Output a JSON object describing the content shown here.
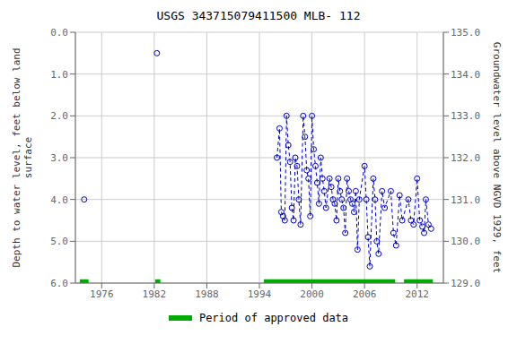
{
  "chart_data": {
    "type": "scatter",
    "title": "USGS 343715079411500 MLB- 112",
    "ylabel": "Depth to water level, feet below land\nsurface",
    "y2label": "Groundwater level above NGVD 1929, feet",
    "xlim": [
      1973,
      2015
    ],
    "xticks": [
      1976,
      1982,
      1988,
      1994,
      2000,
      2006,
      2012
    ],
    "ylim": [
      6.0,
      0.0
    ],
    "yticks": [
      {
        "value": 0.0,
        "label": "0.0"
      },
      {
        "value": 1.0,
        "label": "1.0"
      },
      {
        "value": 2.0,
        "label": "2.0"
      },
      {
        "value": 3.0,
        "label": "3.0"
      },
      {
        "value": 4.0,
        "label": "4.0"
      },
      {
        "value": 5.0,
        "label": "5.0"
      },
      {
        "value": 6.0,
        "label": "6.0"
      }
    ],
    "y2lim": [
      129.0,
      135.0
    ],
    "y2ticks": [
      {
        "value": 129.0,
        "label": "129.0"
      },
      {
        "value": 130.0,
        "label": "130.0"
      },
      {
        "value": 131.0,
        "label": "131.0"
      },
      {
        "value": 132.0,
        "label": "132.0"
      },
      {
        "value": 133.0,
        "label": "133.0"
      },
      {
        "value": 134.0,
        "label": "134.0"
      },
      {
        "value": 135.0,
        "label": "135.0"
      }
    ],
    "grid": true,
    "series": [
      {
        "color": "#0000cc",
        "marker": "circle",
        "line_style": "dashed",
        "x": [
          1974.0
        ],
        "values": [
          4.0
        ]
      },
      {
        "color": "#0000cc",
        "marker": "circle",
        "line_style": "dashed",
        "x": [
          1982.3
        ],
        "values": [
          0.5
        ]
      },
      {
        "color": "#0000cc",
        "marker": "circle",
        "line_style": "dashed",
        "x": [
          1996.0,
          1996.3,
          1996.5,
          1996.7,
          1996.9,
          1997.1,
          1997.3,
          1997.5,
          1997.7,
          1997.9,
          1998.1,
          1998.3,
          1998.5,
          1998.7,
          1999.0,
          1999.2,
          1999.4,
          1999.6,
          1999.8,
          2000.0,
          2000.2,
          2000.4,
          2000.6,
          2000.8,
          2001.0,
          2001.2,
          2001.4,
          2001.6,
          2002.0,
          2002.2,
          2002.4,
          2002.6,
          2002.8,
          2003.0,
          2003.2,
          2003.4,
          2003.6,
          2003.8,
          2004.0,
          2004.2,
          2004.4,
          2004.6,
          2004.8,
          2005.0,
          2005.2,
          2005.4,
          2006.0,
          2006.2,
          2006.4,
          2006.6,
          2007.0,
          2007.2,
          2007.4,
          2007.6,
          2008.0,
          2008.3,
          2009.0,
          2009.3,
          2009.6,
          2010.0,
          2010.3,
          2011.0,
          2011.3,
          2011.6,
          2012.0,
          2012.3,
          2012.6,
          2012.8,
          2013.0,
          2013.3,
          2013.6
        ],
        "values": [
          3.0,
          2.3,
          4.3,
          4.4,
          4.5,
          2.0,
          2.7,
          3.1,
          4.2,
          4.5,
          3.0,
          3.2,
          4.0,
          4.6,
          2.0,
          2.5,
          3.3,
          3.5,
          4.4,
          2.0,
          2.8,
          3.2,
          3.6,
          4.1,
          3.0,
          3.5,
          3.8,
          4.2,
          3.5,
          3.7,
          4.0,
          4.1,
          4.5,
          3.5,
          3.8,
          4.0,
          4.2,
          4.8,
          3.5,
          3.8,
          4.0,
          4.1,
          4.3,
          3.8,
          5.2,
          4.0,
          3.2,
          4.0,
          4.9,
          5.6,
          3.5,
          4.0,
          5.0,
          5.3,
          3.8,
          4.2,
          3.8,
          4.8,
          5.1,
          3.9,
          4.5,
          4.0,
          4.5,
          4.6,
          3.5,
          4.5,
          4.65,
          4.8,
          4.0,
          4.6,
          4.7
        ]
      }
    ],
    "approved_bars": [
      [
        1973.5,
        1974.5
      ],
      [
        1982.1,
        1982.7
      ],
      [
        1994.5,
        2009.5
      ],
      [
        2010.5,
        2013.8
      ]
    ],
    "approved_bar_y": 6.0,
    "approved_bar_height": 0.18,
    "approved_color": "#00aa00",
    "legend_label": "Period of approved data"
  }
}
